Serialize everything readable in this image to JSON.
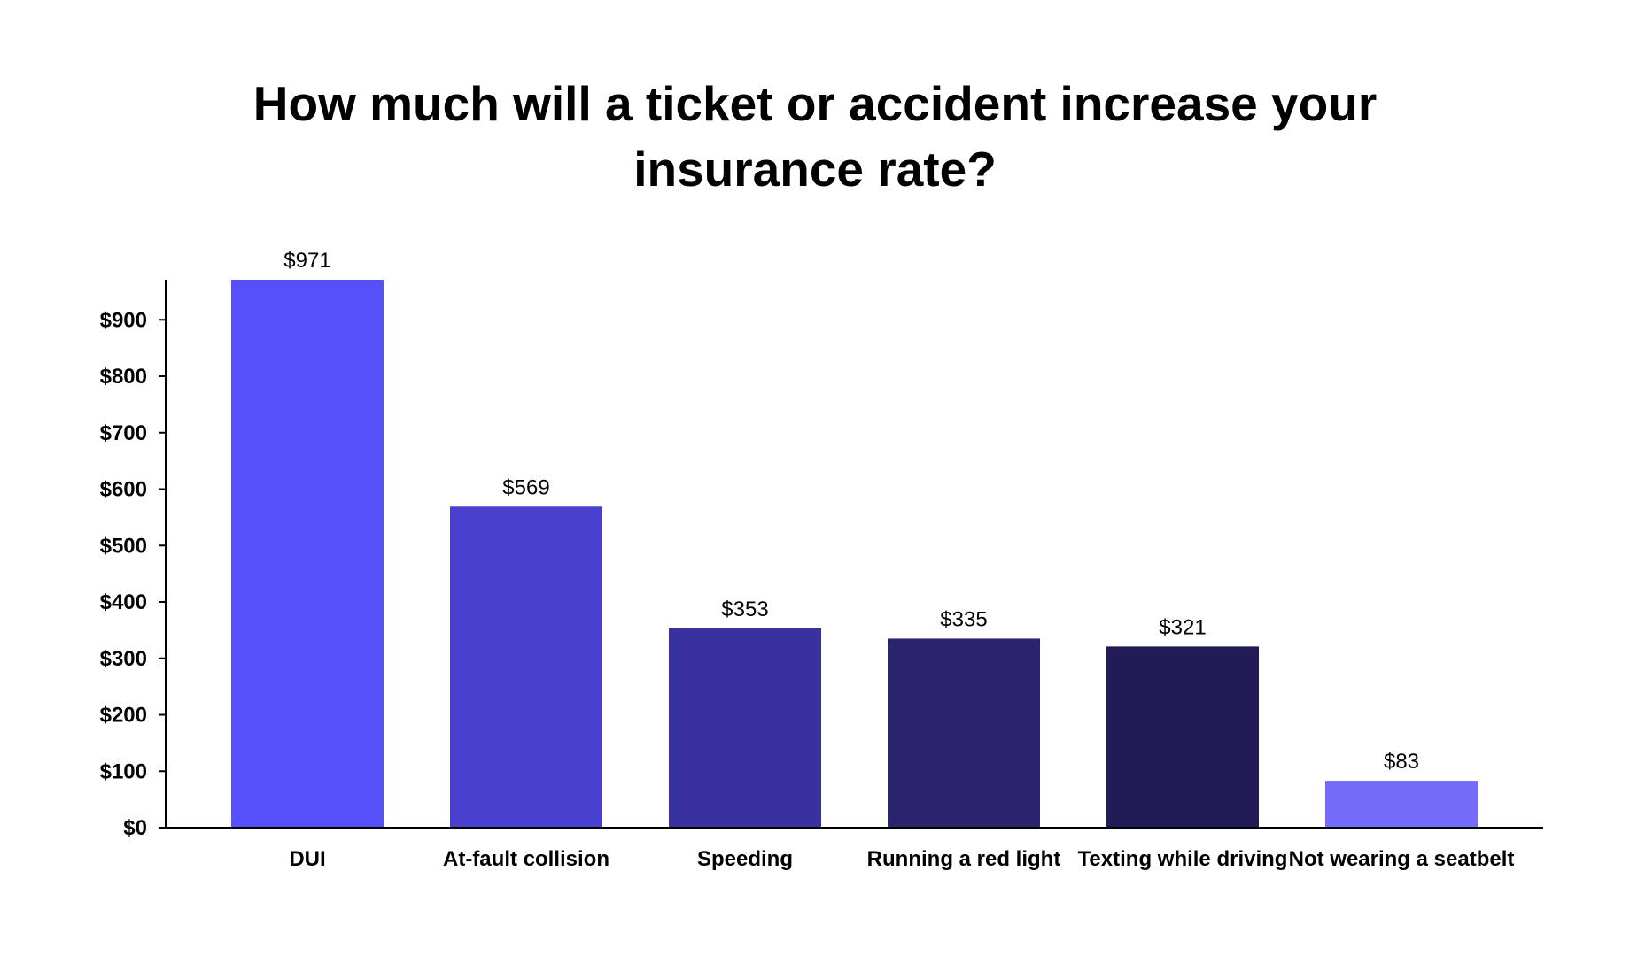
{
  "chart_data": {
    "type": "bar",
    "title": "How much will a ticket or accident increase your insurance rate?",
    "xlabel": "",
    "ylabel": "",
    "categories": [
      "DUI",
      "At-fault collision",
      "Speeding",
      "Running a red light",
      "Texting while driving",
      "Not wearing a seatbelt"
    ],
    "values": [
      971,
      569,
      353,
      335,
      321,
      83
    ],
    "data_labels": [
      "$971",
      "$569",
      "$353",
      "$335",
      "$321",
      "$83"
    ],
    "bar_colors": [
      "#5650fa",
      "#4a40cf",
      "#39319f",
      "#2b236e",
      "#211b58",
      "#766cfb"
    ],
    "ylim": [
      0,
      971
    ],
    "y_ticks": [
      0,
      100,
      200,
      300,
      400,
      500,
      600,
      700,
      800,
      900
    ],
    "y_tick_labels": [
      "$0",
      "$100",
      "$200",
      "$300",
      "$400",
      "$500",
      "$600",
      "$700",
      "$800",
      "$900"
    ],
    "grid": false,
    "legend": "none"
  }
}
